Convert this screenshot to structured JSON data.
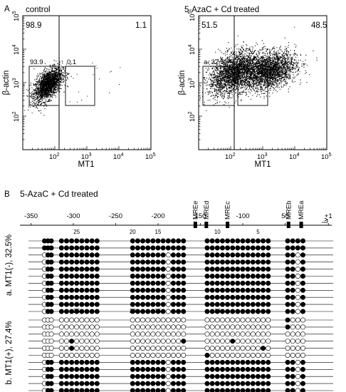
{
  "panel_a": {
    "letter": "A",
    "plots": [
      {
        "title": "control",
        "quadrant_ul": "98.9",
        "quadrant_ur": "1.1",
        "gate_left": "93.9",
        "gate_right": "0.1",
        "xlabel": "MT1",
        "ylabel": "β-actin"
      },
      {
        "title": "5-AzaC + Cd treated",
        "quadrant_ul": "51.5",
        "quadrant_ur": "48.5",
        "gate_left": "a. 32.5",
        "gate_right": "b. 27.4",
        "xlabel": "MT1",
        "ylabel": "β-actin"
      }
    ]
  },
  "panel_b": {
    "letter": "B",
    "title": "5-AzaC + Cd treated",
    "scale_labels": [
      "-350",
      "-300",
      "-250",
      "-200",
      "150",
      "-100",
      "50",
      "+1"
    ],
    "mre_labels": [
      "MREe",
      "MREd",
      "MREc",
      "MREb",
      "MREa"
    ],
    "cpg_index_labels": [
      "25",
      "20",
      "15",
      "10",
      "5"
    ],
    "group_a_label": "a. MT1(-), 32.5%",
    "group_b_label": "b. MT1(+), 27.4%"
  },
  "chart_data": [
    {
      "type": "scatter",
      "title": "control",
      "xlabel": "MT1",
      "ylabel": "β-actin",
      "x_scale": "log",
      "y_scale": "log",
      "xlim": [
        10,
        100000
      ],
      "ylim": [
        10,
        100000
      ],
      "x_ticks": [
        "10^2",
        "10^3",
        "10^4",
        "10^5"
      ],
      "y_ticks": [
        "10^2",
        "10^3",
        "10^4",
        "10^5"
      ],
      "quadrant_percent": {
        "upper_left": 98.9,
        "upper_right": 1.1
      },
      "gates": [
        {
          "label": "93.9",
          "percent": 93.9
        },
        {
          "label": "0.1",
          "percent": 0.1
        }
      ],
      "populations": [
        {
          "center_x": 60,
          "center_y": 900
        }
      ]
    },
    {
      "type": "scatter",
      "title": "5-AzaC + Cd treated",
      "xlabel": "MT1",
      "ylabel": "β-actin",
      "x_scale": "log",
      "y_scale": "log",
      "xlim": [
        10,
        100000
      ],
      "ylim": [
        10,
        100000
      ],
      "x_ticks": [
        "10^2",
        "10^3",
        "10^4",
        "10^5"
      ],
      "y_ticks": [
        "10^2",
        "10^3",
        "10^4",
        "10^5"
      ],
      "quadrant_percent": {
        "upper_left": 51.5,
        "upper_right": 48.5
      },
      "gates": [
        {
          "label": "a. 32.5",
          "percent": 32.5
        },
        {
          "label": "b. 27.4",
          "percent": 27.4
        }
      ],
      "populations": [
        {
          "center_x": 120,
          "center_y": 2000
        },
        {
          "center_x": 1500,
          "center_y": 2300
        }
      ]
    }
  ],
  "methylation": {
    "cpg_clusters": [
      [
        -334,
        -330,
        -326
      ],
      [
        -314,
        -308,
        -302,
        -296,
        -290,
        -284,
        -278,
        -272
      ],
      [
        -230,
        -224,
        -218,
        -212,
        -206,
        -200,
        -194,
        -188,
        -182,
        -176,
        -170
      ],
      [
        -142,
        -136,
        -130,
        -124,
        -118,
        -112,
        -106,
        -100,
        -94,
        -88,
        -82,
        -76,
        -70
      ],
      [
        -47,
        -41,
        -35,
        -29
      ]
    ],
    "mre_positions": [
      -156,
      -143,
      -118,
      -46,
      -31
    ],
    "group_a_rows": [
      "1111111111111111111111111111111111111",
      "1111111111111111111111111111111111111",
      "0111111111111111110111111111111111111",
      "0111111111111111110111111111111111111",
      "0111111111111111110111111111111111111",
      "0111111111111111110111111111111111111",
      "0111111111111111110111111111111111111",
      "0111111111111111110111111111111111111",
      "0111111111111111110111111111111111111",
      "0111111111111111110111111111111111111",
      "0111111111111111110111111111111111111"
    ],
    "group_b_rows": [
      "0000000000000000000000000000000000010",
      "0000000000000000000000000000000000010",
      "0000000000000000000000000000000000000",
      "0000010000000000000001000001000000000",
      "0000010000000000000000000000000001000",
      "0000000000000000000000100000000000000",
      "0111111111111111110111111111111111111",
      "0111111111111111110111111111111111111",
      "0111111111111111110111111111111111111",
      "0111111111111111110111111111111111111",
      "0111111111111111110111111111111111111"
    ]
  }
}
